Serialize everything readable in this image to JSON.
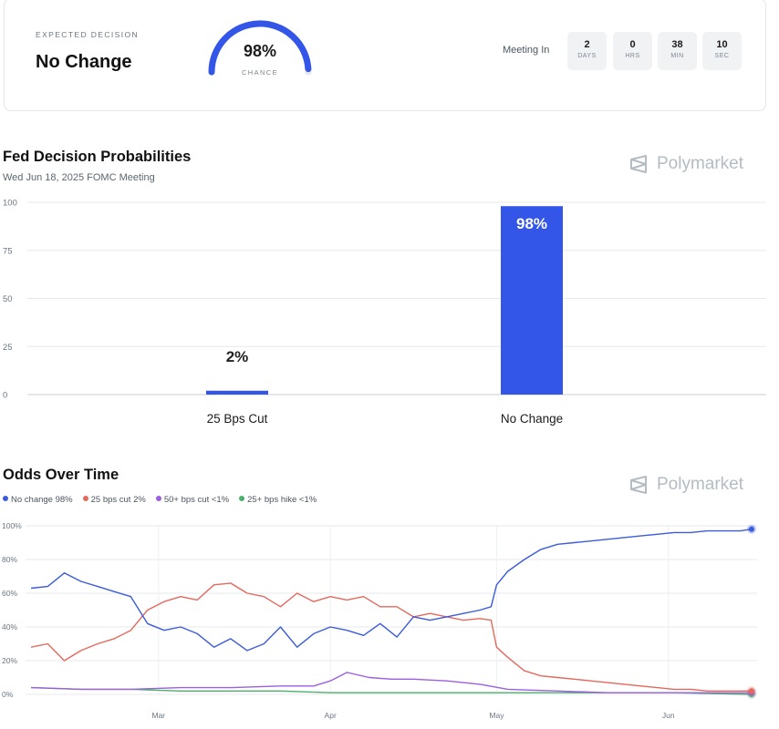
{
  "decision": {
    "expected_label": "EXPECTED DECISION",
    "expected_value": "No Change",
    "gauge_percent": "98%",
    "gauge_label": "CHANCE",
    "gauge_value": 0.98
  },
  "countdown": {
    "label": "Meeting In",
    "units": [
      {
        "value": "2",
        "unit": "DAYS"
      },
      {
        "value": "0",
        "unit": "HRS"
      },
      {
        "value": "38",
        "unit": "MIN"
      },
      {
        "value": "10",
        "unit": "SEC"
      }
    ]
  },
  "brand": "Polymarket",
  "colors": {
    "accent": "#3355e8",
    "no_change": "#3b5bdb",
    "cut_25": "#e5685d",
    "cut_50": "#9b5fe0",
    "hike_25": "#4caf6a"
  },
  "bar_section": {
    "title": "Fed Decision Probabilities",
    "subtitle": "Wed Jun 18, 2025 FOMC Meeting"
  },
  "line_section": {
    "title": "Odds Over Time"
  },
  "chart_data": [
    {
      "type": "bar",
      "title": "Fed Decision Probabilities",
      "subtitle": "Wed Jun 18, 2025 FOMC Meeting",
      "categories": [
        "25 Bps Cut",
        "No Change"
      ],
      "values": [
        2,
        98
      ],
      "data_labels": [
        "2%",
        "98%"
      ],
      "yticks": [
        "0",
        "25",
        "50",
        "75",
        "100"
      ],
      "ylim": [
        0,
        100
      ],
      "grid": true
    },
    {
      "type": "line",
      "title": "Odds Over Time",
      "legend_position": "top-left",
      "legend": [
        {
          "label": "No change 98%",
          "color": "#3b5bdb"
        },
        {
          "label": "25 bps cut 2%",
          "color": "#e5685d"
        },
        {
          "label": "50+ bps cut <1%",
          "color": "#9b5fe0"
        },
        {
          "label": "25+ bps hike <1%",
          "color": "#4caf6a"
        }
      ],
      "xticks": [
        "Mar",
        "Apr",
        "May",
        "Jun"
      ],
      "xtick_dates": [
        "2025-03-01",
        "2025-04-01",
        "2025-05-01",
        "2025-06-01"
      ],
      "yticks": [
        "0%",
        "20%",
        "40%",
        "60%",
        "80%",
        "100%"
      ],
      "ylim": [
        0,
        100
      ],
      "grid": true,
      "series": [
        {
          "name": "No change 98%",
          "x": [
            "2025-02-06",
            "2025-02-09",
            "2025-02-12",
            "2025-02-15",
            "2025-02-18",
            "2025-02-21",
            "2025-02-24",
            "2025-02-27",
            "2025-03-02",
            "2025-03-05",
            "2025-03-08",
            "2025-03-11",
            "2025-03-14",
            "2025-03-17",
            "2025-03-20",
            "2025-03-23",
            "2025-03-26",
            "2025-03-29",
            "2025-04-01",
            "2025-04-04",
            "2025-04-07",
            "2025-04-10",
            "2025-04-13",
            "2025-04-16",
            "2025-04-19",
            "2025-04-22",
            "2025-04-25",
            "2025-04-28",
            "2025-04-30",
            "2025-05-01",
            "2025-05-03",
            "2025-05-06",
            "2025-05-09",
            "2025-05-12",
            "2025-05-15",
            "2025-05-18",
            "2025-05-21",
            "2025-05-24",
            "2025-05-27",
            "2025-05-30",
            "2025-06-02",
            "2025-06-05",
            "2025-06-08",
            "2025-06-11",
            "2025-06-14",
            "2025-06-16"
          ],
          "values": [
            63,
            64,
            72,
            67,
            64,
            61,
            58,
            42,
            38,
            40,
            36,
            28,
            33,
            26,
            30,
            40,
            28,
            36,
            40,
            38,
            35,
            42,
            34,
            46,
            44,
            46,
            48,
            50,
            52,
            65,
            73,
            80,
            86,
            89,
            90,
            91,
            92,
            93,
            94,
            95,
            96,
            96,
            97,
            97,
            97,
            98
          ]
        },
        {
          "name": "25 bps cut 2%",
          "x": [
            "2025-02-06",
            "2025-02-09",
            "2025-02-12",
            "2025-02-15",
            "2025-02-18",
            "2025-02-21",
            "2025-02-24",
            "2025-02-27",
            "2025-03-02",
            "2025-03-05",
            "2025-03-08",
            "2025-03-11",
            "2025-03-14",
            "2025-03-17",
            "2025-03-20",
            "2025-03-23",
            "2025-03-26",
            "2025-03-29",
            "2025-04-01",
            "2025-04-04",
            "2025-04-07",
            "2025-04-10",
            "2025-04-13",
            "2025-04-16",
            "2025-04-19",
            "2025-04-22",
            "2025-04-25",
            "2025-04-28",
            "2025-04-30",
            "2025-05-01",
            "2025-05-03",
            "2025-05-06",
            "2025-05-09",
            "2025-05-12",
            "2025-05-15",
            "2025-05-18",
            "2025-05-21",
            "2025-05-24",
            "2025-05-27",
            "2025-05-30",
            "2025-06-02",
            "2025-06-05",
            "2025-06-08",
            "2025-06-11",
            "2025-06-14",
            "2025-06-16"
          ],
          "values": [
            28,
            30,
            20,
            26,
            30,
            33,
            38,
            50,
            55,
            58,
            56,
            65,
            66,
            60,
            58,
            52,
            60,
            55,
            58,
            56,
            58,
            52,
            52,
            46,
            48,
            46,
            44,
            45,
            44,
            28,
            22,
            14,
            11,
            10,
            9,
            8,
            7,
            6,
            5,
            4,
            3,
            3,
            2,
            2,
            2,
            2
          ]
        },
        {
          "name": "50+ bps cut <1%",
          "x": [
            "2025-02-06",
            "2025-02-15",
            "2025-02-24",
            "2025-03-05",
            "2025-03-14",
            "2025-03-23",
            "2025-03-29",
            "2025-04-01",
            "2025-04-04",
            "2025-04-08",
            "2025-04-12",
            "2025-04-16",
            "2025-04-22",
            "2025-04-28",
            "2025-05-03",
            "2025-05-12",
            "2025-05-21",
            "2025-05-30",
            "2025-06-08",
            "2025-06-16"
          ],
          "values": [
            4,
            3,
            3,
            4,
            4,
            5,
            5,
            8,
            13,
            10,
            9,
            9,
            8,
            6,
            3,
            2,
            1,
            1,
            1,
            1
          ]
        },
        {
          "name": "25+ bps hike <1%",
          "x": [
            "2025-02-06",
            "2025-02-15",
            "2025-02-24",
            "2025-03-05",
            "2025-03-14",
            "2025-03-23",
            "2025-04-01",
            "2025-04-10",
            "2025-04-19",
            "2025-04-28",
            "2025-05-06",
            "2025-05-15",
            "2025-05-24",
            "2025-06-02",
            "2025-06-16"
          ],
          "values": [
            4,
            3,
            3,
            2,
            2,
            2,
            1,
            1,
            1,
            1,
            1,
            1,
            1,
            1,
            0
          ]
        }
      ]
    }
  ]
}
